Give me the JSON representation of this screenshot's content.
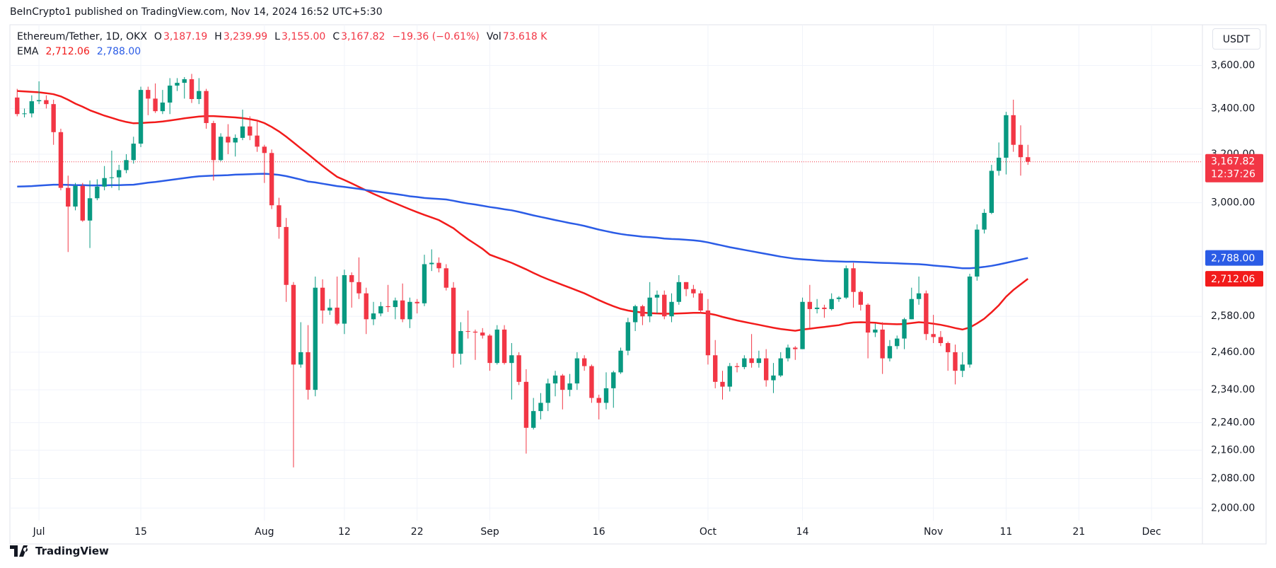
{
  "header": {
    "published": "BeInCrypto1 published on TradingView.com, Nov 14, 2024 16:52 UTC+5:30",
    "ohlc": [
      {
        "key": "O",
        "value": "3,187.19"
      },
      {
        "key": "H",
        "value": "3,239.99"
      },
      {
        "key": "L",
        "value": "3,155.00"
      },
      {
        "key": "C",
        "value": "3,167.82"
      }
    ],
    "change": "−19.36 (−0.61%)",
    "vol_key": "Vol",
    "vol": "73.618 K",
    "value_color": "#f23645",
    "currency": "USDT",
    "footer": "TradingView"
  },
  "chart_data": {
    "type": "candlestick",
    "title": "Ethereum/Tether, 1D, OKX",
    "y_scale": "log",
    "grid": true,
    "up_color": "#089981",
    "down_color": "#f23645",
    "x": [
      "2024-06-28",
      "2024-06-29",
      "2024-06-30",
      "2024-07-01",
      "2024-07-02",
      "2024-07-03",
      "2024-07-04",
      "2024-07-05",
      "2024-07-06",
      "2024-07-07",
      "2024-07-08",
      "2024-07-09",
      "2024-07-10",
      "2024-07-11",
      "2024-07-12",
      "2024-07-13",
      "2024-07-14",
      "2024-07-15",
      "2024-07-16",
      "2024-07-17",
      "2024-07-18",
      "2024-07-19",
      "2024-07-20",
      "2024-07-21",
      "2024-07-22",
      "2024-07-23",
      "2024-07-24",
      "2024-07-25",
      "2024-07-26",
      "2024-07-27",
      "2024-07-28",
      "2024-07-29",
      "2024-07-30",
      "2024-07-31",
      "2024-08-01",
      "2024-08-02",
      "2024-08-03",
      "2024-08-04",
      "2024-08-05",
      "2024-08-06",
      "2024-08-07",
      "2024-08-08",
      "2024-08-09",
      "2024-08-10",
      "2024-08-11",
      "2024-08-12",
      "2024-08-13",
      "2024-08-14",
      "2024-08-15",
      "2024-08-16",
      "2024-08-17",
      "2024-08-18",
      "2024-08-19",
      "2024-08-20",
      "2024-08-21",
      "2024-08-22",
      "2024-08-23",
      "2024-08-24",
      "2024-08-25",
      "2024-08-26",
      "2024-08-27",
      "2024-08-28",
      "2024-08-29",
      "2024-08-30",
      "2024-08-31",
      "2024-09-01",
      "2024-09-02",
      "2024-09-03",
      "2024-09-04",
      "2024-09-05",
      "2024-09-06",
      "2024-09-07",
      "2024-09-08",
      "2024-09-09",
      "2024-09-10",
      "2024-09-11",
      "2024-09-12",
      "2024-09-13",
      "2024-09-14",
      "2024-09-15",
      "2024-09-16",
      "2024-09-17",
      "2024-09-18",
      "2024-09-19",
      "2024-09-20",
      "2024-09-21",
      "2024-09-22",
      "2024-09-23",
      "2024-09-24",
      "2024-09-25",
      "2024-09-26",
      "2024-09-27",
      "2024-09-28",
      "2024-09-29",
      "2024-09-30",
      "2024-10-01",
      "2024-10-02",
      "2024-10-03",
      "2024-10-04",
      "2024-10-05",
      "2024-10-06",
      "2024-10-07",
      "2024-10-08",
      "2024-10-09",
      "2024-10-10",
      "2024-10-11",
      "2024-10-12",
      "2024-10-13",
      "2024-10-14",
      "2024-10-15",
      "2024-10-16",
      "2024-10-17",
      "2024-10-18",
      "2024-10-19",
      "2024-10-20",
      "2024-10-21",
      "2024-10-22",
      "2024-10-23",
      "2024-10-24",
      "2024-10-25",
      "2024-10-26",
      "2024-10-27",
      "2024-10-28",
      "2024-10-29",
      "2024-10-30",
      "2024-10-31",
      "2024-11-01",
      "2024-11-02",
      "2024-11-03",
      "2024-11-04",
      "2024-11-05",
      "2024-11-06",
      "2024-11-07",
      "2024-11-08",
      "2024-11-09",
      "2024-11-10",
      "2024-11-11",
      "2024-11-12",
      "2024-11-13",
      "2024-11-14"
    ],
    "open": [
      3450,
      3375,
      3378,
      3433,
      3438,
      3420,
      3295,
      3060,
      2985,
      3068,
      2930,
      3018,
      3065,
      3100,
      3103,
      3133,
      3175,
      3245,
      3485,
      3445,
      3388,
      3427,
      3505,
      3518,
      3535,
      3443,
      3480,
      3335,
      3175,
      3275,
      3250,
      3270,
      3320,
      3280,
      3232,
      3205,
      2990,
      2905,
      2690,
      2420,
      2460,
      2340,
      2680,
      2600,
      2610,
      2555,
      2725,
      2700,
      2660,
      2570,
      2590,
      2615,
      2612,
      2635,
      2570,
      2630,
      2625,
      2765,
      2770,
      2750,
      2680,
      2455,
      2530,
      2528,
      2525,
      2515,
      2425,
      2535,
      2425,
      2450,
      2365,
      2225,
      2275,
      2300,
      2360,
      2385,
      2340,
      2360,
      2440,
      2415,
      2315,
      2300,
      2345,
      2395,
      2465,
      2560,
      2615,
      2580,
      2645,
      2655,
      2580,
      2630,
      2700,
      2675,
      2660,
      2600,
      2450,
      2365,
      2350,
      2415,
      2412,
      2440,
      2425,
      2440,
      2370,
      2385,
      2440,
      2475,
      2470,
      2630,
      2605,
      2610,
      2605,
      2640,
      2645,
      2750,
      2665,
      2620,
      2525,
      2535,
      2440,
      2480,
      2505,
      2570,
      2640,
      2660,
      2520,
      2510,
      2490,
      2460,
      2400,
      2420,
      2720,
      2895,
      2960,
      3130,
      3185,
      3370,
      3240,
      3187.19
    ],
    "high": [
      3490,
      3400,
      3460,
      3525,
      3460,
      3440,
      3310,
      3110,
      3080,
      3080,
      3090,
      3095,
      3150,
      3215,
      3155,
      3200,
      3275,
      3500,
      3500,
      3515,
      3485,
      3540,
      3540,
      3545,
      3560,
      3540,
      3490,
      3345,
      3290,
      3330,
      3285,
      3395,
      3365,
      3350,
      3240,
      3220,
      3020,
      2940,
      2700,
      2560,
      2550,
      2720,
      2710,
      2640,
      2720,
      2745,
      2735,
      2790,
      2680,
      2630,
      2630,
      2690,
      2645,
      2695,
      2645,
      2640,
      2800,
      2820,
      2790,
      2765,
      2700,
      2560,
      2600,
      2535,
      2540,
      2520,
      2550,
      2550,
      2490,
      2460,
      2405,
      2315,
      2330,
      2375,
      2400,
      2390,
      2390,
      2460,
      2450,
      2420,
      2325,
      2395,
      2400,
      2475,
      2575,
      2620,
      2620,
      2700,
      2670,
      2670,
      2660,
      2725,
      2700,
      2690,
      2670,
      2640,
      2500,
      2400,
      2425,
      2425,
      2450,
      2520,
      2465,
      2470,
      2425,
      2460,
      2485,
      2480,
      2645,
      2690,
      2640,
      2620,
      2660,
      2650,
      2760,
      2770,
      2670,
      2625,
      2555,
      2560,
      2500,
      2515,
      2575,
      2680,
      2720,
      2670,
      2585,
      2530,
      2495,
      2485,
      2460,
      2730,
      2915,
      2975,
      3155,
      3250,
      3385,
      3440,
      3325,
      3239.99
    ],
    "low": [
      3365,
      3360,
      3360,
      3420,
      3400,
      3240,
      3050,
      2810,
      2970,
      2925,
      2825,
      3010,
      3050,
      3060,
      3050,
      3120,
      3160,
      3230,
      3370,
      3380,
      3375,
      3375,
      3480,
      3445,
      3425,
      3420,
      3310,
      3090,
      3170,
      3200,
      3190,
      3260,
      3260,
      3210,
      3080,
      2975,
      2860,
      2630,
      2111,
      2410,
      2310,
      2320,
      2555,
      2585,
      2550,
      2520,
      2610,
      2640,
      2520,
      2550,
      2580,
      2595,
      2570,
      2560,
      2540,
      2590,
      2615,
      2740,
      2735,
      2670,
      2410,
      2420,
      2505,
      2435,
      2505,
      2400,
      2420,
      2420,
      2310,
      2355,
      2150,
      2220,
      2250,
      2275,
      2320,
      2280,
      2320,
      2340,
      2400,
      2300,
      2250,
      2280,
      2285,
      2390,
      2450,
      2530,
      2550,
      2560,
      2590,
      2570,
      2560,
      2620,
      2650,
      2645,
      2590,
      2420,
      2345,
      2310,
      2335,
      2395,
      2405,
      2410,
      2410,
      2350,
      2330,
      2380,
      2430,
      2435,
      2470,
      2540,
      2590,
      2575,
      2600,
      2630,
      2640,
      2610,
      2600,
      2440,
      2510,
      2390,
      2430,
      2470,
      2470,
      2570,
      2620,
      2500,
      2490,
      2480,
      2400,
      2357,
      2380,
      2410,
      2705,
      2880,
      2955,
      3110,
      3115,
      3210,
      3110,
      3155
    ],
    "close": [
      3375,
      3378,
      3433,
      3438,
      3420,
      3295,
      3060,
      2985,
      3068,
      2930,
      3018,
      3065,
      3100,
      3103,
      3133,
      3175,
      3245,
      3485,
      3445,
      3388,
      3427,
      3505,
      3518,
      3535,
      3443,
      3480,
      3335,
      3175,
      3275,
      3250,
      3270,
      3320,
      3280,
      3232,
      3205,
      2990,
      2905,
      2690,
      2420,
      2460,
      2340,
      2680,
      2600,
      2610,
      2555,
      2725,
      2700,
      2660,
      2570,
      2590,
      2615,
      2612,
      2635,
      2570,
      2630,
      2625,
      2765,
      2770,
      2750,
      2680,
      2455,
      2530,
      2528,
      2525,
      2515,
      2425,
      2535,
      2425,
      2450,
      2365,
      2225,
      2275,
      2300,
      2360,
      2385,
      2340,
      2360,
      2440,
      2415,
      2315,
      2300,
      2345,
      2395,
      2465,
      2560,
      2615,
      2580,
      2645,
      2655,
      2580,
      2630,
      2700,
      2675,
      2660,
      2600,
      2450,
      2365,
      2350,
      2415,
      2412,
      2440,
      2425,
      2440,
      2370,
      2385,
      2440,
      2475,
      2470,
      2630,
      2605,
      2610,
      2605,
      2640,
      2645,
      2750,
      2665,
      2620,
      2525,
      2535,
      2440,
      2480,
      2505,
      2570,
      2640,
      2660,
      2520,
      2510,
      2490,
      2460,
      2400,
      2420,
      2720,
      2895,
      2960,
      3130,
      3185,
      3370,
      3240,
      3187.19,
      3167.82
    ],
    "lines_name": "EMA",
    "lines": [
      {
        "color": "#f21b1b",
        "label": "2,712.06",
        "values": [
          3480,
          3478,
          3476,
          3474,
          3470,
          3465,
          3455,
          3440,
          3422,
          3408,
          3392,
          3380,
          3368,
          3358,
          3348,
          3340,
          3334,
          3335,
          3337,
          3339,
          3342,
          3346,
          3351,
          3356,
          3360,
          3364,
          3366,
          3366,
          3364,
          3362,
          3360,
          3357,
          3352,
          3346,
          3335,
          3318,
          3298,
          3275,
          3250,
          3225,
          3200,
          3175,
          3150,
          3127,
          3105,
          3092,
          3078,
          3064,
          3050,
          3036,
          3023,
          3010,
          2998,
          2986,
          2974,
          2963,
          2952,
          2942,
          2932,
          2916,
          2900,
          2878,
          2858,
          2840,
          2822,
          2800,
          2790,
          2780,
          2770,
          2758,
          2746,
          2733,
          2721,
          2710,
          2700,
          2690,
          2680,
          2670,
          2660,
          2648,
          2636,
          2625,
          2615,
          2606,
          2600,
          2596,
          2593,
          2591,
          2590,
          2589,
          2589,
          2590,
          2591,
          2592,
          2592,
          2590,
          2585,
          2578,
          2572,
          2566,
          2561,
          2556,
          2551,
          2546,
          2541,
          2537,
          2534,
          2531,
          2535,
          2538,
          2541,
          2544,
          2547,
          2550,
          2556,
          2559,
          2560,
          2559,
          2558,
          2555,
          2554,
          2553,
          2554,
          2557,
          2560,
          2558,
          2555,
          2551,
          2546,
          2540,
          2535,
          2542,
          2556,
          2572,
          2594,
          2618,
          2648,
          2672,
          2692,
          2712.06
        ]
      },
      {
        "color": "#2b5ce6",
        "label": "2,788.00",
        "values": [
          3065,
          3066,
          3067,
          3069,
          3071,
          3073,
          3073,
          3072,
          3071,
          3071,
          3070,
          3070,
          3070,
          3071,
          3071,
          3072,
          3073,
          3077,
          3081,
          3084,
          3088,
          3092,
          3096,
          3100,
          3104,
          3107,
          3109,
          3110,
          3111,
          3112,
          3114,
          3115,
          3116,
          3117,
          3118,
          3116,
          3113,
          3108,
          3101,
          3094,
          3086,
          3082,
          3077,
          3072,
          3067,
          3064,
          3060,
          3056,
          3051,
          3047,
          3043,
          3039,
          3035,
          3031,
          3026,
          3023,
          3019,
          3017,
          3015,
          3013,
          3008,
          3002,
          2997,
          2993,
          2988,
          2983,
          2979,
          2974,
          2970,
          2964,
          2957,
          2950,
          2944,
          2938,
          2932,
          2926,
          2920,
          2915,
          2909,
          2902,
          2895,
          2889,
          2883,
          2878,
          2874,
          2871,
          2868,
          2866,
          2864,
          2861,
          2859,
          2858,
          2856,
          2854,
          2851,
          2846,
          2840,
          2834,
          2828,
          2823,
          2818,
          2813,
          2808,
          2803,
          2798,
          2793,
          2789,
          2785,
          2783,
          2781,
          2779,
          2777,
          2776,
          2775,
          2774,
          2774,
          2773,
          2772,
          2771,
          2770,
          2769,
          2768,
          2767,
          2766,
          2765,
          2763,
          2760,
          2758,
          2756,
          2753,
          2750,
          2750,
          2752,
          2755,
          2759,
          2764,
          2770,
          2776,
          2782,
          2788.0
        ]
      }
    ],
    "last_price": {
      "value": 3167.82,
      "label": "3,167.82",
      "countdown": "12:37:26",
      "color": "#f23645"
    },
    "xlim": [
      "2024-06-27",
      "2024-12-08"
    ],
    "xticks": [
      {
        "value": "2024-07-01",
        "label": "Jul"
      },
      {
        "value": "2024-07-15",
        "label": "15"
      },
      {
        "value": "2024-08-01",
        "label": "Aug"
      },
      {
        "value": "2024-08-12",
        "label": "12"
      },
      {
        "value": "2024-08-22",
        "label": "22"
      },
      {
        "value": "2024-09-01",
        "label": "Sep"
      },
      {
        "value": "2024-09-16",
        "label": "16"
      },
      {
        "value": "2024-10-01",
        "label": "Oct"
      },
      {
        "value": "2024-10-14",
        "label": "14"
      },
      {
        "value": "2024-11-01",
        "label": "Nov"
      },
      {
        "value": "2024-11-11",
        "label": "11"
      },
      {
        "value": "2024-11-21",
        "label": "21"
      },
      {
        "value": "2024-12-01",
        "label": "Dec"
      }
    ],
    "ylim": [
      1967,
      3800
    ],
    "yticks": [
      {
        "value": 2000,
        "label": "2,000.00"
      },
      {
        "value": 2080,
        "label": "2,080.00"
      },
      {
        "value": 2160,
        "label": "2,160.00"
      },
      {
        "value": 2240,
        "label": "2,240.00"
      },
      {
        "value": 2340,
        "label": "2,340.00"
      },
      {
        "value": 2460,
        "label": "2,460.00"
      },
      {
        "value": 2580,
        "label": "2,580.00"
      },
      {
        "value": 3000,
        "label": "3,000.00"
      },
      {
        "value": 3200,
        "label": "3,200.00"
      },
      {
        "value": 3400,
        "label": "3,400.00"
      },
      {
        "value": 3600,
        "label": "3,600.00"
      }
    ]
  }
}
